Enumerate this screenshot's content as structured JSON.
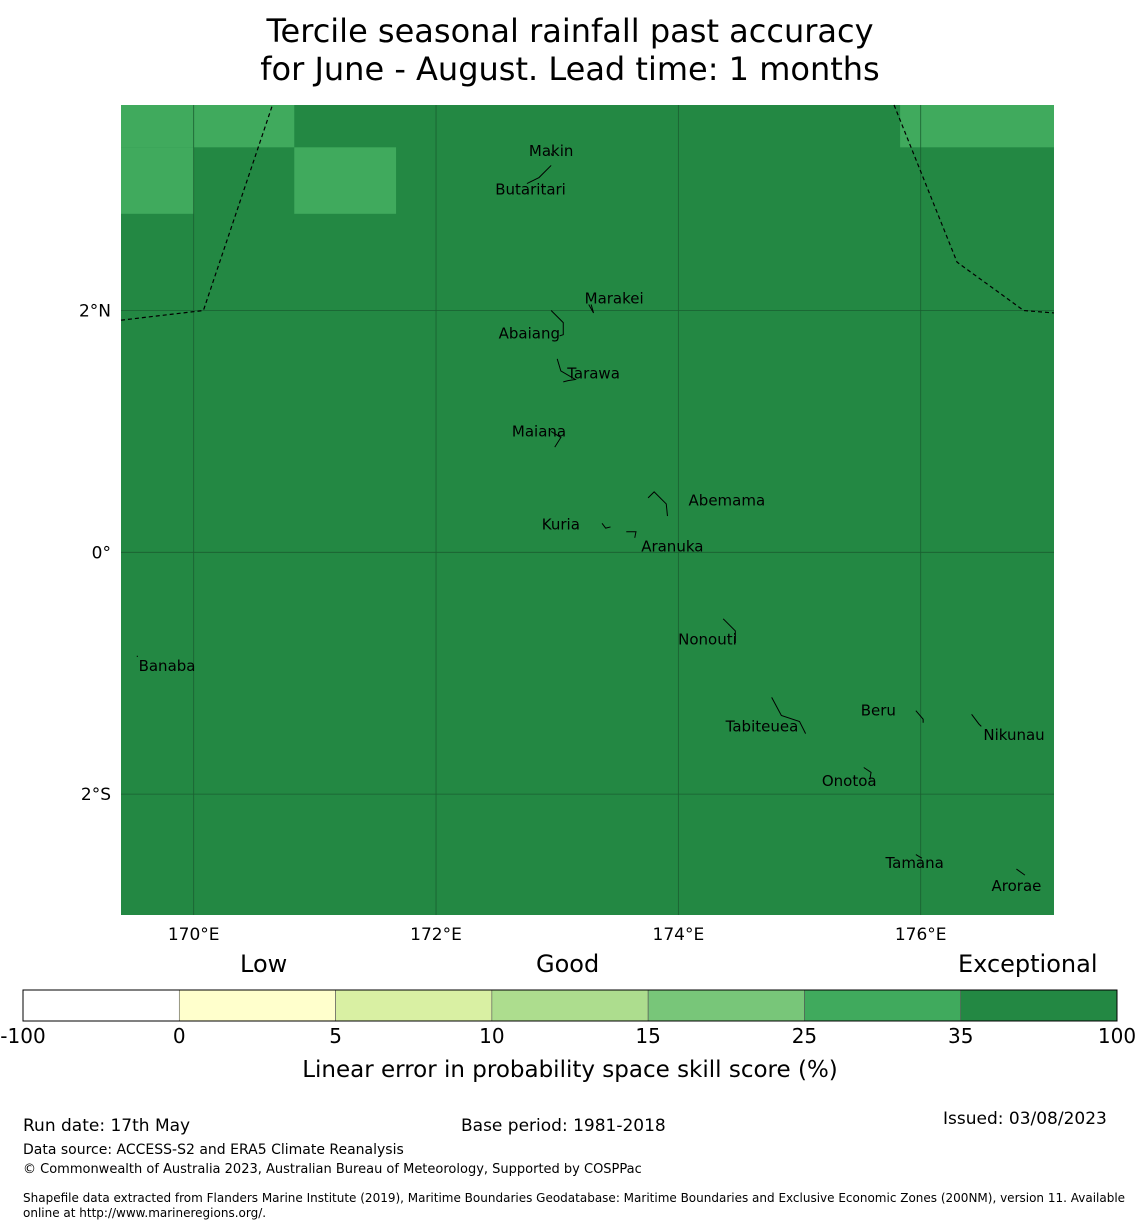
{
  "title": {
    "line1": "Tercile seasonal rainfall past accuracy",
    "line2": "for June - August. Lead time: 1 months"
  },
  "map": {
    "lon_range": [
      169.4,
      177.1
    ],
    "lat_range": [
      -3.0,
      3.7
    ],
    "gridlines": true,
    "lon_ticks": [
      {
        "value": 170,
        "label": "170°E"
      },
      {
        "value": 172,
        "label": "172°E"
      },
      {
        "value": 174,
        "label": "174°E"
      },
      {
        "value": 176,
        "label": "176°E"
      }
    ],
    "lat_ticks": [
      {
        "value": 2,
        "label": "2°N"
      },
      {
        "value": 0,
        "label": "0°"
      },
      {
        "value": -2,
        "label": "2°S"
      }
    ],
    "colors": {
      "base": "#238843",
      "cell_25_35": "#40aa5d",
      "grid": "#1a5e30",
      "coast": "#000000",
      "eez": "#000000"
    },
    "skill_cells": [
      {
        "lon": [
          169.4,
          170.0
        ],
        "lat": [
          3.35,
          3.7
        ]
      },
      {
        "lon": [
          170.0,
          170.83
        ],
        "lat": [
          3.35,
          3.7
        ]
      },
      {
        "lon": [
          169.4,
          170.0
        ],
        "lat": [
          2.8,
          3.35
        ]
      },
      {
        "lon": [
          170.83,
          171.67
        ],
        "lat": [
          2.8,
          3.35
        ]
      },
      {
        "lon": [
          175.83,
          177.1
        ],
        "lat": [
          3.35,
          3.7
        ]
      }
    ],
    "islands": [
      {
        "name": "Makin",
        "label_lon": 172.95,
        "label_lat": 3.32,
        "lon": 172.95,
        "lat": 3.3
      },
      {
        "name": "Butaritari",
        "label_lon": 172.78,
        "label_lat": 3.0,
        "lon": 172.85,
        "lat": 3.1
      },
      {
        "name": "Marakei",
        "label_lon": 173.47,
        "label_lat": 2.1,
        "lon": 173.28,
        "lat": 2.0
      },
      {
        "name": "Abaiang",
        "label_lon": 172.77,
        "label_lat": 1.81,
        "lon": 173.0,
        "lat": 1.85
      },
      {
        "name": "Tarawa",
        "label_lon": 173.3,
        "label_lat": 1.48,
        "lon": 173.05,
        "lat": 1.45
      },
      {
        "name": "Maiana",
        "label_lon": 172.85,
        "label_lat": 1.0,
        "lon": 173.0,
        "lat": 0.95
      },
      {
        "name": "Abemama",
        "label_lon": 174.4,
        "label_lat": 0.43,
        "lon": 173.85,
        "lat": 0.4
      },
      {
        "name": "Kuria",
        "label_lon": 173.03,
        "label_lat": 0.23,
        "lon": 173.4,
        "lat": 0.22
      },
      {
        "name": "Aranuka",
        "label_lon": 173.95,
        "label_lat": 0.05,
        "lon": 173.62,
        "lat": 0.17
      },
      {
        "name": "Nonouti",
        "label_lon": 174.24,
        "label_lat": -0.72,
        "lon": 174.42,
        "lat": -0.65
      },
      {
        "name": "Banaba",
        "label_lon": 169.78,
        "label_lat": -0.94,
        "lon": 169.53,
        "lat": -0.86
      },
      {
        "name": "Tabiteuea",
        "label_lon": 174.69,
        "label_lat": -1.44,
        "lon": 174.85,
        "lat": -1.3
      },
      {
        "name": "Beru",
        "label_lon": 175.65,
        "label_lat": -1.31,
        "lon": 175.98,
        "lat": -1.33
      },
      {
        "name": "Nikunau",
        "label_lon": 176.77,
        "label_lat": -1.51,
        "lon": 176.45,
        "lat": -1.37
      },
      {
        "name": "Onotoa",
        "label_lon": 175.41,
        "label_lat": -1.89,
        "lon": 175.55,
        "lat": -1.82
      },
      {
        "name": "Tamana",
        "label_lon": 175.95,
        "label_lat": -2.57,
        "lon": 175.98,
        "lat": -2.5
      },
      {
        "name": "Arorae",
        "label_lon": 176.79,
        "label_lat": -2.76,
        "lon": 176.82,
        "lat": -2.65
      }
    ]
  },
  "colorbar": {
    "categories": {
      "low": "Low",
      "good": "Good",
      "exceptional": "Exceptional"
    },
    "bins": [
      {
        "from": -100,
        "to": 0,
        "color": "#ffffff"
      },
      {
        "from": 0,
        "to": 5,
        "color": "#ffffcc"
      },
      {
        "from": 5,
        "to": 10,
        "color": "#d9f0a3"
      },
      {
        "from": 10,
        "to": 15,
        "color": "#addd8e"
      },
      {
        "from": 15,
        "to": 25,
        "color": "#78c679"
      },
      {
        "from": 25,
        "to": 35,
        "color": "#40aa5d"
      },
      {
        "from": 35,
        "to": 100,
        "color": "#238843"
      }
    ],
    "tick_labels": [
      "-100",
      "0",
      "5",
      "10",
      "15",
      "25",
      "35",
      "100"
    ],
    "label": "Linear error in probability space skill score (%)"
  },
  "footer": {
    "run_date": "Run date: 17th May",
    "base_period": "Base period: 1981-2018",
    "issued": "Issued: 03/08/2023",
    "data_source": "Data source: ACCESS-S2 and ERA5 Climate Reanalysis",
    "copyright": "© Commonwealth of Australia 2023, Australian Bureau of Meteorology, Supported by COSPPac",
    "shapefile_line1": "Shapefile data extracted from Flanders Marine Institute (2019), Maritime Boundaries Geodatabase: Maritime Boundaries and Exclusive Economic Zones (200NM), version 11. Available",
    "shapefile_line2": "online at http://www.marineregions.org/."
  }
}
